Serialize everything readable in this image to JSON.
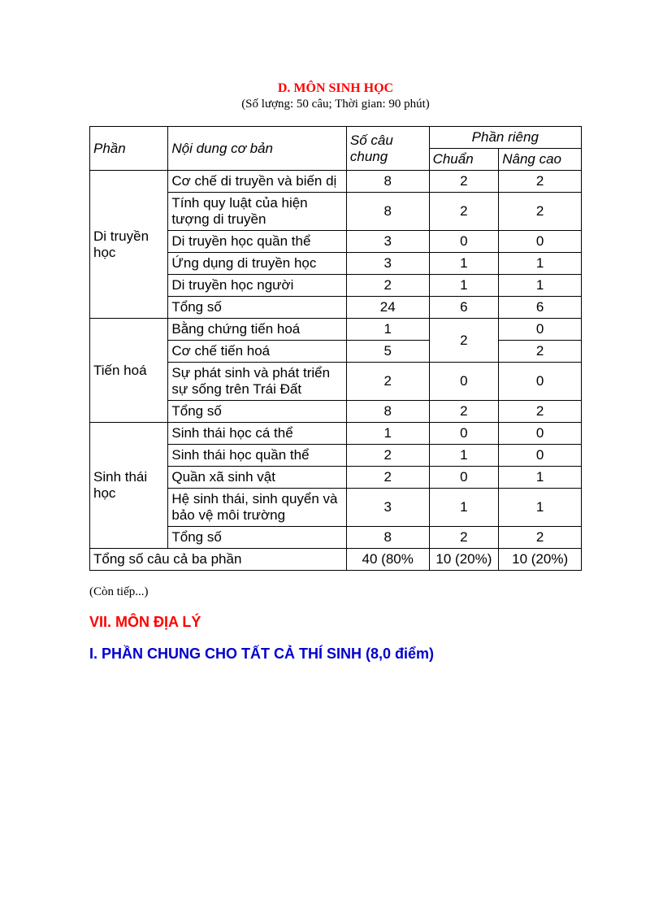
{
  "title": "D. MÔN SINH HỌC",
  "subtitle": "(Số lượng: 50 câu; Thời gian: 90 phút)",
  "table": {
    "headers": {
      "phan": "Phần",
      "noidung": "Nội dung cơ bản",
      "socau": "Số câu chung",
      "phanrieng": "Phần riêng",
      "chuan": "Chuẩn",
      "nangcao": "Nâng cao"
    },
    "sections": [
      {
        "name": "Di truyền học",
        "rows": [
          {
            "noidung": "Cơ chế di truyền và biến dị",
            "socau": "8",
            "chuan": "2",
            "nangcao": "2"
          },
          {
            "noidung": "Tính quy luật của hiện tượng di truyền",
            "socau": "8",
            "chuan": "2",
            "nangcao": "2"
          },
          {
            "noidung": "Di truyền học quần thể",
            "socau": "3",
            "chuan": "0",
            "nangcao": "0"
          },
          {
            "noidung": "Ứng dụng di truyền học",
            "socau": "3",
            "chuan": "1",
            "nangcao": "1"
          },
          {
            "noidung": "Di truyền học người",
            "socau": "2",
            "chuan": "1",
            "nangcao": "1"
          },
          {
            "noidung": "Tổng số",
            "socau": "24",
            "chuan": "6",
            "nangcao": "6"
          }
        ]
      },
      {
        "name": "Tiến hoá",
        "rows": [
          {
            "noidung": "Bằng chứng tiến hoá",
            "socau": "1",
            "chuan_merged": "2",
            "nangcao": "0"
          },
          {
            "noidung": "Cơ chế tiến hoá",
            "socau": "5",
            "nangcao": "2"
          },
          {
            "noidung": "Sự phát sinh và phát triển sự sống trên Trái Đất",
            "socau": "2",
            "chuan": "0",
            "nangcao": "0"
          },
          {
            "noidung": "Tổng số",
            "socau": "8",
            "chuan": "2",
            "nangcao": "2"
          }
        ]
      },
      {
        "name": "Sinh thái học",
        "rows": [
          {
            "noidung": "Sinh thái học cá thể",
            "socau": "1",
            "chuan": "0",
            "nangcao": "0"
          },
          {
            "noidung": "Sinh thái học quần thể",
            "socau": "2",
            "chuan": "1",
            "nangcao": "0"
          },
          {
            "noidung": "Quần xã sinh vật",
            "socau": "2",
            "chuan": "0",
            "nangcao": "1"
          },
          {
            "noidung": "Hệ sinh thái, sinh quyển và bảo vệ môi trường",
            "socau": "3",
            "chuan": "1",
            "nangcao": "1"
          },
          {
            "noidung": "Tổng số",
            "socau": "8",
            "chuan": "2",
            "nangcao": "2"
          }
        ]
      }
    ],
    "total": {
      "label": "Tổng số câu cả ba phần",
      "socau": "40 (80%",
      "chuan": "10 (20%)",
      "nangcao": "10 (20%)"
    }
  },
  "contiep": "(Còn tiếp...)",
  "heading_red": "VII. MÔN ĐỊA LÝ",
  "heading_blue": "I. PHẦN CHUNG CHO TẤT CẢ THÍ SINH (8,0 điểm)"
}
